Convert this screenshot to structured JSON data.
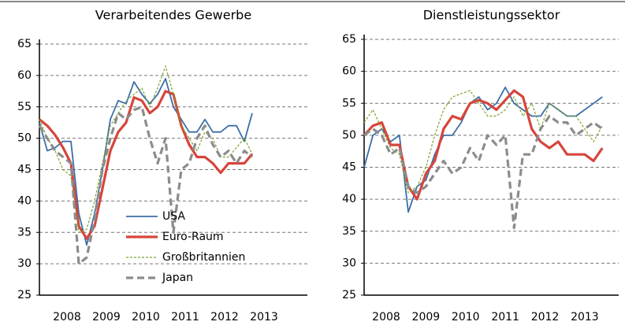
{
  "chart_data": [
    {
      "type": "line",
      "title": "Verarbeitendes Gewerbe",
      "x": [
        2007.8,
        2008.0,
        2008.2,
        2008.4,
        2008.6,
        2008.8,
        2009.0,
        2009.2,
        2009.4,
        2009.6,
        2009.8,
        2010.0,
        2010.2,
        2010.4,
        2010.6,
        2010.8,
        2011.0,
        2011.2,
        2011.4,
        2011.6,
        2011.8,
        2012.0,
        2012.2,
        2012.4,
        2012.6,
        2012.8,
        2013.0,
        2013.2
      ],
      "xlim": [
        2007.8,
        2014.6
      ],
      "xticks": [
        {
          "value": 2008.5,
          "label": "2008"
        },
        {
          "value": 2009.5,
          "label": "2009"
        },
        {
          "value": 2010.5,
          "label": "2010"
        },
        {
          "value": 2011.5,
          "label": "2011"
        },
        {
          "value": 2012.5,
          "label": "2012"
        },
        {
          "value": 2013.5,
          "label": "2013"
        }
      ],
      "ylim": [
        25,
        65
      ],
      "yticks": [
        25,
        30,
        35,
        40,
        45,
        50,
        55,
        60,
        65
      ],
      "grid": true,
      "legend": "lower-center",
      "series": [
        {
          "name": "USA",
          "color": "#3b6ea8",
          "values": [
            52.5,
            48,
            48.5,
            49.5,
            49.5,
            38,
            33,
            38,
            45,
            53,
            56,
            55.5,
            59,
            57,
            55.5,
            57,
            59.5,
            55,
            53,
            51,
            51,
            53,
            51,
            51,
            52,
            52,
            49.5,
            54
          ]
        },
        {
          "name": "Euro-Raum",
          "color": "#d6453b",
          "values": [
            53,
            52,
            50.5,
            48.5,
            46,
            36,
            34,
            36,
            42,
            48,
            51,
            52.5,
            56.5,
            56,
            54,
            55,
            57.5,
            57,
            52,
            49,
            47,
            47,
            46,
            44.5,
            46,
            46,
            46,
            47.5
          ]
        },
        {
          "name": "Großbritannien",
          "color": "#7aa32a",
          "values": [
            53,
            50,
            48,
            45,
            44,
            35,
            35.5,
            40,
            46,
            52,
            54,
            56,
            57,
            58,
            55,
            58,
            61.5,
            57,
            52,
            50,
            48,
            51,
            50,
            47,
            47,
            48.5,
            50,
            47.5
          ]
        },
        {
          "name": "Japan",
          "color": "#8c8c8c",
          "values": [
            52,
            50,
            48,
            47,
            46,
            30,
            31,
            37,
            45,
            50,
            54,
            53,
            54.5,
            55,
            50,
            46,
            50,
            35,
            45,
            46,
            50,
            52,
            49,
            47,
            48,
            46,
            48,
            47
          ]
        }
      ]
    },
    {
      "type": "line",
      "title": "Dienstleistungssektor",
      "x": [
        2007.8,
        2008.0,
        2008.2,
        2008.4,
        2008.6,
        2008.8,
        2009.0,
        2009.2,
        2009.4,
        2009.6,
        2009.8,
        2010.0,
        2010.2,
        2010.4,
        2010.6,
        2010.8,
        2011.0,
        2011.2,
        2011.4,
        2011.6,
        2011.8,
        2012.0,
        2012.2,
        2012.4,
        2012.6,
        2012.8,
        2013.0,
        2013.2
      ],
      "xlim": [
        2007.8,
        2013.57
      ],
      "xticks": [
        {
          "value": 2008.3,
          "label": "2008"
        },
        {
          "value": 2009.2,
          "label": "2009"
        },
        {
          "value": 2010.1,
          "label": "2010"
        },
        {
          "value": 2011.0,
          "label": "2011"
        },
        {
          "value": 2011.9,
          "label": "2012"
        },
        {
          "value": 2012.8,
          "label": "2013"
        }
      ],
      "ylim": [
        25,
        65
      ],
      "yticks": [
        25,
        30,
        35,
        40,
        45,
        50,
        55,
        60,
        65
      ],
      "grid": true,
      "series": [
        {
          "color": "#3b6ea8",
          "values": [
            45,
            50,
            51,
            49,
            50,
            38,
            42,
            43,
            47,
            50,
            50,
            52,
            55,
            56,
            54,
            55,
            57.5,
            55,
            54,
            53,
            53,
            55,
            54,
            53,
            53,
            54,
            55,
            56
          ]
        },
        {
          "color": "#d6453b",
          "values": [
            50,
            51.5,
            52,
            48.5,
            48.5,
            42,
            40,
            44,
            46,
            51,
            53,
            52.5,
            55,
            55.5,
            55,
            54,
            55.5,
            57,
            56,
            51,
            49,
            48,
            49,
            47,
            47,
            47,
            46,
            48
          ]
        },
        {
          "color": "#7aa32a",
          "values": [
            52,
            54,
            51,
            48,
            47,
            41,
            42,
            45,
            50,
            54,
            56,
            56.5,
            57,
            55,
            53,
            53,
            54,
            56,
            53,
            55,
            51,
            55,
            54,
            53,
            53,
            51,
            49,
            51.5
          ]
        },
        {
          "color": "#8c8c8c",
          "values": [
            50,
            51,
            50,
            47,
            48,
            42,
            41,
            42,
            44,
            46,
            44,
            45,
            48,
            46,
            50,
            48.5,
            50,
            35.5,
            47,
            47,
            51,
            53,
            52,
            52,
            50,
            51,
            52,
            51
          ]
        }
      ]
    }
  ]
}
